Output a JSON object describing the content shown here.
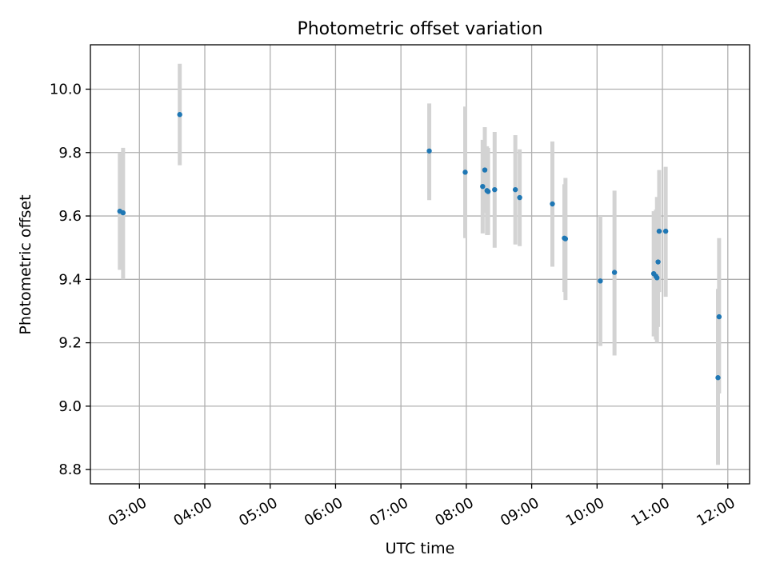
{
  "chart_data": {
    "type": "scatter",
    "title": "Photometric offset variation",
    "xlabel": "UTC time",
    "ylabel": "Photometric offset",
    "x_range": [
      "02:15",
      "12:20"
    ],
    "ylim": [
      8.755,
      10.14
    ],
    "x_ticks": [
      "03:00",
      "04:00",
      "05:00",
      "06:00",
      "07:00",
      "08:00",
      "09:00",
      "10:00",
      "11:00",
      "12:00"
    ],
    "y_ticks": [
      "8.8",
      "9.0",
      "9.2",
      "9.4",
      "9.6",
      "9.8",
      "10.0"
    ],
    "grid": true,
    "marker_color": "#1f77b4",
    "errorbar_color": "#d3d3d3",
    "series": [
      {
        "points": [
          {
            "x": "02:42",
            "y": 9.615,
            "ylow": 9.43,
            "yhigh": 9.8
          },
          {
            "x": "02:45",
            "y": 9.61,
            "ylow": 9.4,
            "yhigh": 9.815
          },
          {
            "x": "03:37",
            "y": 9.92,
            "ylow": 9.76,
            "yhigh": 10.08
          },
          {
            "x": "07:26",
            "y": 9.805,
            "ylow": 9.65,
            "yhigh": 9.955
          },
          {
            "x": "07:59",
            "y": 9.738,
            "ylow": 9.53,
            "yhigh": 9.945
          },
          {
            "x": "08:15",
            "y": 9.693,
            "ylow": 9.545,
            "yhigh": 9.84
          },
          {
            "x": "08:17",
            "y": 9.745,
            "ylow": 9.61,
            "yhigh": 9.88
          },
          {
            "x": "08:19",
            "y": 9.68,
            "ylow": 9.54,
            "yhigh": 9.82
          },
          {
            "x": "08:20",
            "y": 9.677,
            "ylow": 9.54,
            "yhigh": 9.815
          },
          {
            "x": "08:26",
            "y": 9.683,
            "ylow": 9.5,
            "yhigh": 9.865
          },
          {
            "x": "08:45",
            "y": 9.683,
            "ylow": 9.51,
            "yhigh": 9.855
          },
          {
            "x": "08:49",
            "y": 9.658,
            "ylow": 9.505,
            "yhigh": 9.81
          },
          {
            "x": "09:19",
            "y": 9.638,
            "ylow": 9.44,
            "yhigh": 9.835
          },
          {
            "x": "09:30",
            "y": 9.53,
            "ylow": 9.36,
            "yhigh": 9.7
          },
          {
            "x": "09:31",
            "y": 9.528,
            "ylow": 9.335,
            "yhigh": 9.72
          },
          {
            "x": "10:03",
            "y": 9.395,
            "ylow": 9.19,
            "yhigh": 9.6
          },
          {
            "x": "10:16",
            "y": 9.422,
            "ylow": 9.16,
            "yhigh": 9.68
          },
          {
            "x": "10:52",
            "y": 9.418,
            "ylow": 9.22,
            "yhigh": 9.615
          },
          {
            "x": "10:54",
            "y": 9.41,
            "ylow": 9.21,
            "yhigh": 9.62
          },
          {
            "x": "10:55",
            "y": 9.405,
            "ylow": 9.2,
            "yhigh": 9.66
          },
          {
            "x": "10:56",
            "y": 9.455,
            "ylow": 9.25,
            "yhigh": 9.6
          },
          {
            "x": "10:57",
            "y": 9.552,
            "ylow": 9.36,
            "yhigh": 9.745
          },
          {
            "x": "11:03",
            "y": 9.552,
            "ylow": 9.345,
            "yhigh": 9.755
          },
          {
            "x": "11:51",
            "y": 9.09,
            "ylow": 8.815,
            "yhigh": 9.37
          },
          {
            "x": "11:52",
            "y": 9.282,
            "ylow": 9.04,
            "yhigh": 9.53
          }
        ]
      }
    ]
  }
}
